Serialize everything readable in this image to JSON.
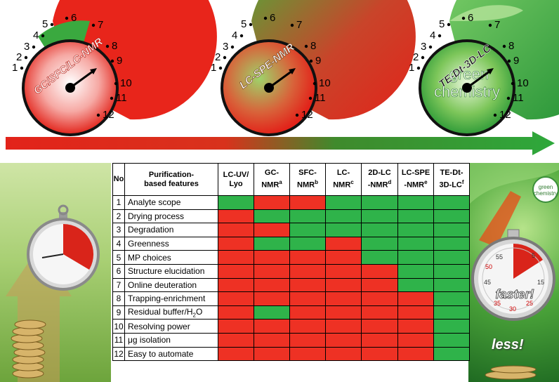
{
  "gauges": [
    {
      "label": "GC/SFC/LC-NMR",
      "numbers": [
        "1",
        "2",
        "3",
        "4",
        "5",
        "6",
        "7",
        "8",
        "9",
        "10",
        "11",
        "12"
      ]
    },
    {
      "label": "LC-SPE-NMR",
      "numbers": [
        "1",
        "2",
        "3",
        "4",
        "5",
        "6",
        "7",
        "8",
        "9",
        "10",
        "11",
        "12"
      ]
    },
    {
      "label": "TE-Dt-3D-LC",
      "numbers": [
        "1",
        "2",
        "3",
        "4",
        "5",
        "6",
        "7",
        "8",
        "9",
        "10",
        "11",
        "12"
      ],
      "inner_text": [
        "green",
        "chemistry"
      ]
    }
  ],
  "colors": {
    "red": "#ee3124",
    "green": "#2fb34a"
  },
  "table": {
    "headers": {
      "no": "No",
      "features": [
        "Purification-",
        "based features"
      ],
      "methods": [
        {
          "l1": "LC-UV/",
          "l2": "Lyo",
          "sup": ""
        },
        {
          "l1": "GC-",
          "l2": "NMR",
          "sup": "a"
        },
        {
          "l1": "SFC-",
          "l2": "NMR",
          "sup": "b"
        },
        {
          "l1": "LC-",
          "l2": "NMR",
          "sup": "c"
        },
        {
          "l1": "2D-LC",
          "l2": "-NMR",
          "sup": "d"
        },
        {
          "l1": "LC-SPE",
          "l2": "-NMR",
          "sup": "e"
        },
        {
          "l1": "TE-Dt-",
          "l2": "3D-LC",
          "sup": "f"
        }
      ]
    },
    "rows": [
      {
        "no": "1",
        "feature": "Analyte scope",
        "cells": [
          "green",
          "red",
          "red",
          "green",
          "green",
          "green",
          "green"
        ]
      },
      {
        "no": "2",
        "feature": "Drying process",
        "cells": [
          "red",
          "green",
          "green",
          "green",
          "green",
          "green",
          "green"
        ]
      },
      {
        "no": "3",
        "feature": "Degradation",
        "cells": [
          "red",
          "red",
          "green",
          "green",
          "green",
          "green",
          "green"
        ]
      },
      {
        "no": "4",
        "feature": "Greenness",
        "cells": [
          "red",
          "green",
          "green",
          "red",
          "green",
          "green",
          "green"
        ]
      },
      {
        "no": "5",
        "feature": "MP choices",
        "cells": [
          "red",
          "red",
          "red",
          "red",
          "green",
          "green",
          "green"
        ]
      },
      {
        "no": "6",
        "feature": "Structure elucidation",
        "cells": [
          "red",
          "red",
          "red",
          "red",
          "red",
          "green",
          "green"
        ]
      },
      {
        "no": "7",
        "feature": "Online deuteration",
        "cells": [
          "red",
          "red",
          "red",
          "red",
          "red",
          "green",
          "green"
        ]
      },
      {
        "no": "8",
        "feature": "Trapping-enrichment",
        "cells": [
          "red",
          "red",
          "red",
          "red",
          "red",
          "red",
          "green"
        ]
      },
      {
        "no": "9",
        "feature": "Residual buffer/H2O",
        "feature_pre": "Residual buffer/H",
        "feature_sub": "2",
        "feature_post": "O",
        "cells": [
          "red",
          "green",
          "red",
          "red",
          "red",
          "red",
          "green"
        ]
      },
      {
        "no": "10",
        "feature": "Resolving power",
        "cells": [
          "red",
          "red",
          "red",
          "red",
          "red",
          "red",
          "green"
        ]
      },
      {
        "no": "11",
        "feature": "μg isolation",
        "cells": [
          "red",
          "red",
          "red",
          "red",
          "red",
          "red",
          "green"
        ]
      },
      {
        "no": "12",
        "feature": "Easy to automate",
        "cells": [
          "red",
          "red",
          "red",
          "red",
          "red",
          "red",
          "green"
        ]
      }
    ]
  },
  "right_panel": {
    "badge": [
      "green",
      "chemistry"
    ],
    "stopwatch_label": "faster!",
    "stopwatch_numbers": [
      "55",
      "45",
      "15",
      "50",
      "35",
      "30",
      "25",
      "5"
    ],
    "bottom_label": "less!"
  }
}
